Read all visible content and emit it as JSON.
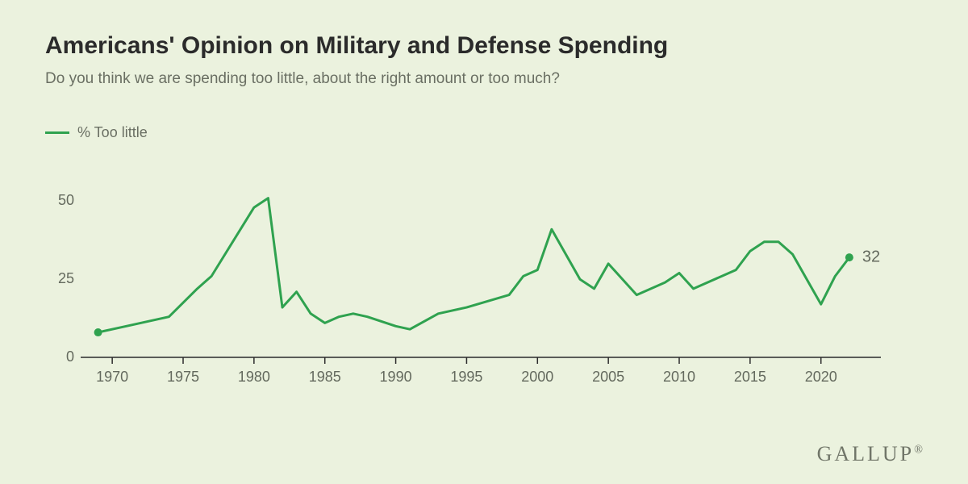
{
  "colors": {
    "background": "#ebf2de",
    "title": "#2b2b2b",
    "subtitle": "#6a6f63",
    "axis_line": "#2b2b2b",
    "tick_label": "#646a5e",
    "series": "#2fa24f",
    "footer": "#707568"
  },
  "typography": {
    "title_fontsize": 30,
    "subtitle_fontsize": 19,
    "legend_fontsize": 18,
    "tick_fontsize": 18,
    "footer_fontsize": 26
  },
  "title": "Americans' Opinion on Military and Defense Spending",
  "subtitle": "Do you think we are spending too little, about the right amount or too much?",
  "legend": {
    "label": "% Too little"
  },
  "chart": {
    "type": "line",
    "x_domain": [
      1968,
      2024
    ],
    "y_domain": [
      0,
      62
    ],
    "y_ticks": [
      0,
      25,
      50
    ],
    "x_ticks": [
      1970,
      1975,
      1980,
      1985,
      1990,
      1995,
      2000,
      2005,
      2010,
      2015,
      2020
    ],
    "line_width": 3,
    "end_marker_radius": 5,
    "start_marker_radius": 5,
    "end_label": "32",
    "series": [
      {
        "x": 1969,
        "y": 8
      },
      {
        "x": 1971,
        "y": 10
      },
      {
        "x": 1973,
        "y": 12
      },
      {
        "x": 1974,
        "y": 13
      },
      {
        "x": 1976,
        "y": 22
      },
      {
        "x": 1977,
        "y": 26
      },
      {
        "x": 1980,
        "y": 48
      },
      {
        "x": 1981,
        "y": 51
      },
      {
        "x": 1982,
        "y": 16
      },
      {
        "x": 1983,
        "y": 21
      },
      {
        "x": 1984,
        "y": 14
      },
      {
        "x": 1985,
        "y": 11
      },
      {
        "x": 1986,
        "y": 13
      },
      {
        "x": 1987,
        "y": 14
      },
      {
        "x": 1988,
        "y": 13
      },
      {
        "x": 1990,
        "y": 10
      },
      {
        "x": 1991,
        "y": 9
      },
      {
        "x": 1993,
        "y": 14
      },
      {
        "x": 1995,
        "y": 16
      },
      {
        "x": 1998,
        "y": 20
      },
      {
        "x": 1999,
        "y": 26
      },
      {
        "x": 2000,
        "y": 28
      },
      {
        "x": 2001,
        "y": 41
      },
      {
        "x": 2002,
        "y": 33
      },
      {
        "x": 2003,
        "y": 25
      },
      {
        "x": 2004,
        "y": 22
      },
      {
        "x": 2005,
        "y": 30
      },
      {
        "x": 2006,
        "y": 25
      },
      {
        "x": 2007,
        "y": 20
      },
      {
        "x": 2008,
        "y": 22
      },
      {
        "x": 2009,
        "y": 24
      },
      {
        "x": 2010,
        "y": 27
      },
      {
        "x": 2011,
        "y": 22
      },
      {
        "x": 2013,
        "y": 26
      },
      {
        "x": 2014,
        "y": 28
      },
      {
        "x": 2015,
        "y": 34
      },
      {
        "x": 2016,
        "y": 37
      },
      {
        "x": 2017,
        "y": 37
      },
      {
        "x": 2018,
        "y": 33
      },
      {
        "x": 2019,
        "y": 25
      },
      {
        "x": 2020,
        "y": 17
      },
      {
        "x": 2021,
        "y": 26
      },
      {
        "x": 2022,
        "y": 32
      }
    ]
  },
  "footer": {
    "brand": "GALLUP",
    "reg_mark": "®"
  }
}
